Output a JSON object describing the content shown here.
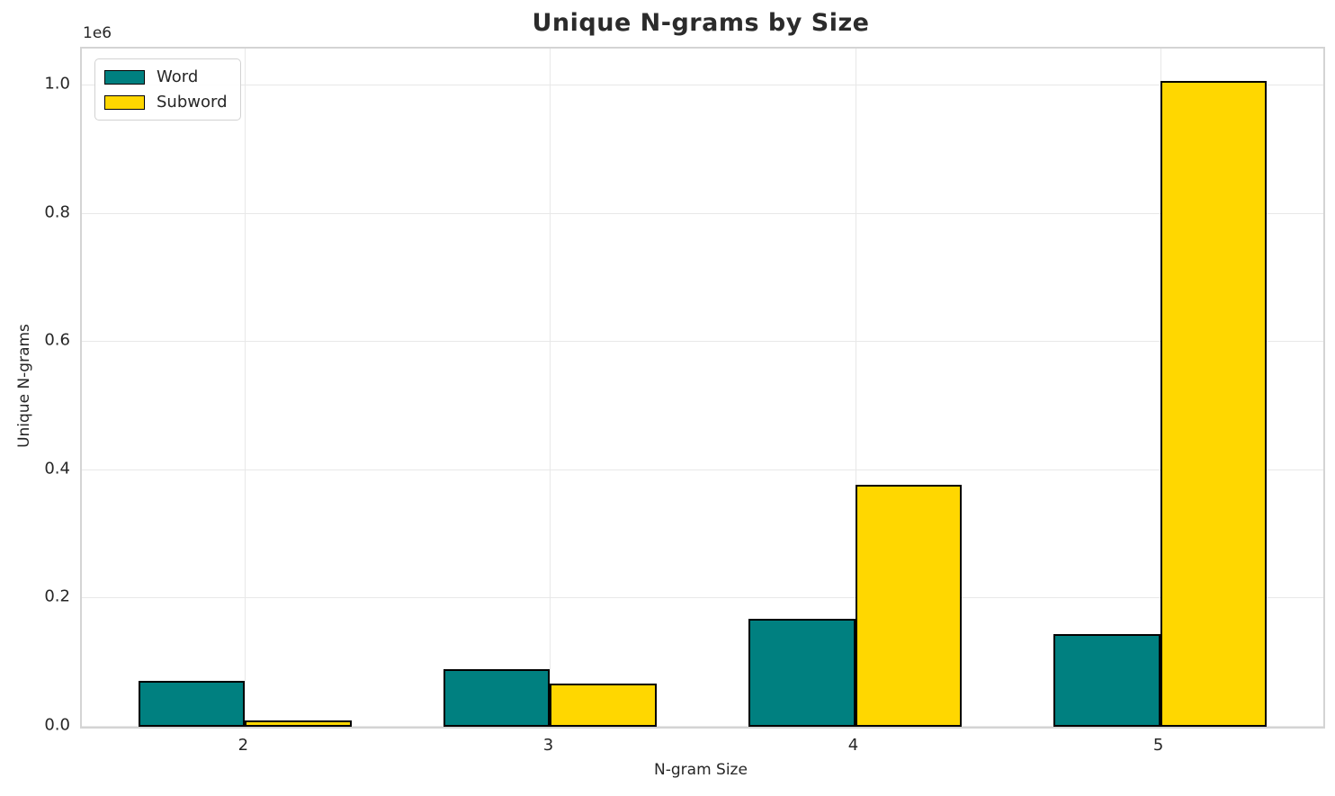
{
  "title": "Unique N-grams by Size",
  "legend": {
    "items": [
      {
        "label": "Word",
        "color": "#008080"
      },
      {
        "label": "Subword",
        "color": "#FFD700"
      }
    ]
  },
  "chart_data": {
    "type": "bar",
    "categories": [
      "2",
      "3",
      "4",
      "5"
    ],
    "x": [
      2,
      3,
      4,
      5
    ],
    "series": [
      {
        "name": "Word",
        "color": "#008080",
        "values": [
          72000,
          90000,
          169000,
          144000
        ]
      },
      {
        "name": "Subword",
        "color": "#FFD700",
        "values": [
          10000,
          68000,
          378000,
          1007000
        ]
      }
    ],
    "title": "Unique N-grams by Size",
    "xlabel": "N-gram Size",
    "ylabel": "Unique N-grams",
    "y_offset_text": "1e6",
    "ylim": [
      0,
      1058000
    ],
    "xlim": [
      1.465,
      5.535
    ],
    "yticks": [
      0,
      200000,
      400000,
      600000,
      800000,
      1000000
    ],
    "ytick_labels": [
      "0.0",
      "0.2",
      "0.4",
      "0.6",
      "0.8",
      "1.0"
    ],
    "bar_width": 0.35,
    "bar_edge_color": "#000000",
    "grid": true,
    "legend_position": "upper left"
  }
}
